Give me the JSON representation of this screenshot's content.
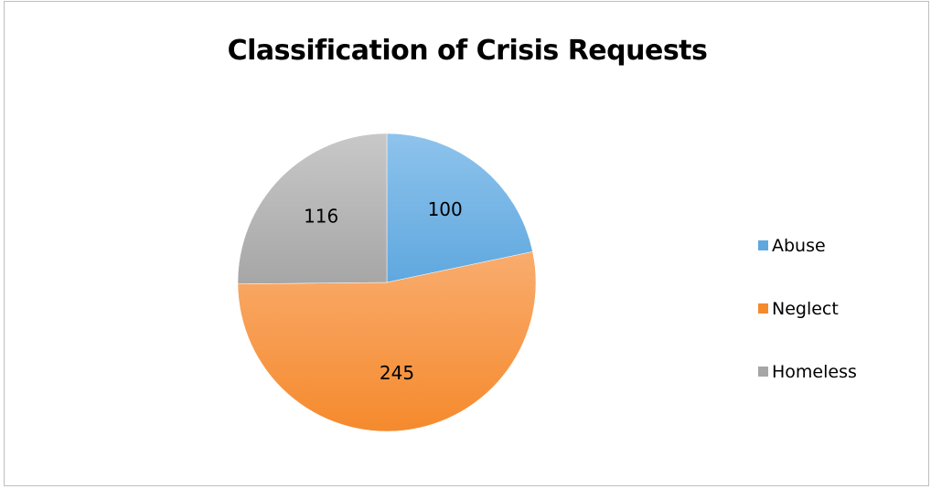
{
  "chart_data": {
    "type": "pie",
    "title": "Classification of Crisis Requests",
    "categories": [
      "Abuse",
      "Neglect",
      "Homeless"
    ],
    "values": [
      100,
      245,
      116
    ],
    "data_labels": [
      "100",
      "245",
      "116"
    ],
    "colors": [
      "#5fa8df",
      "#f58a2d",
      "#a6a6a6"
    ],
    "colors_light": [
      "#8ec3ec",
      "#f9ac6e",
      "#c8c8c8"
    ],
    "start_angle_deg": 0,
    "direction": "clockwise",
    "legend": "right"
  }
}
